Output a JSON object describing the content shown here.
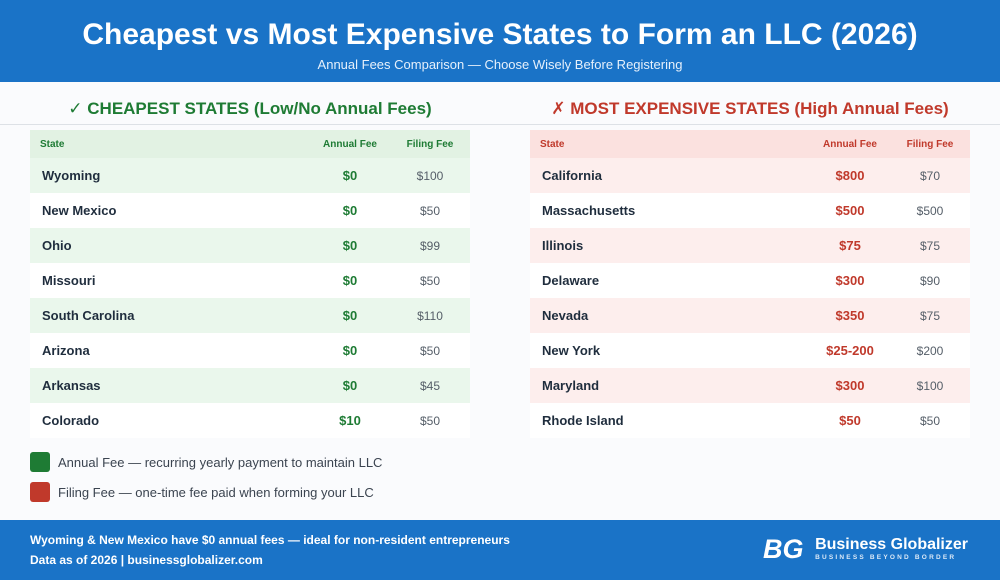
{
  "header": {
    "title": "Cheapest vs Most Expensive States to Form an LLC (2026)",
    "subtitle": "Annual Fees Comparison — Choose Wisely Before Registering"
  },
  "columns": {
    "state": "State",
    "annual": "Annual Fee",
    "filing": "Filing Fee"
  },
  "cheapest": {
    "title": "✓ CHEAPEST STATES (Low/No Annual Fees)",
    "accent": "#1e7b34",
    "rows": [
      {
        "state": "Wyoming",
        "annual": "$0",
        "filing": "$100"
      },
      {
        "state": "New Mexico",
        "annual": "$0",
        "filing": "$50"
      },
      {
        "state": "Ohio",
        "annual": "$0",
        "filing": "$99"
      },
      {
        "state": "Missouri",
        "annual": "$0",
        "filing": "$50"
      },
      {
        "state": "South Carolina",
        "annual": "$0",
        "filing": "$110"
      },
      {
        "state": "Arizona",
        "annual": "$0",
        "filing": "$50"
      },
      {
        "state": "Arkansas",
        "annual": "$0",
        "filing": "$45"
      },
      {
        "state": "Colorado",
        "annual": "$10",
        "filing": "$50"
      }
    ]
  },
  "expensive": {
    "title": "✗ MOST EXPENSIVE STATES (High Annual Fees)",
    "accent": "#c0392b",
    "rows": [
      {
        "state": "California",
        "annual": "$800",
        "filing": "$70"
      },
      {
        "state": "Massachusetts",
        "annual": "$500",
        "filing": "$500"
      },
      {
        "state": "Illinois",
        "annual": "$75",
        "filing": "$75"
      },
      {
        "state": "Delaware",
        "annual": "$300",
        "filing": "$90"
      },
      {
        "state": "Nevada",
        "annual": "$350",
        "filing": "$75"
      },
      {
        "state": "New York",
        "annual": "$25-200",
        "filing": "$200"
      },
      {
        "state": "Maryland",
        "annual": "$300",
        "filing": "$100"
      },
      {
        "state": "Rhode Island",
        "annual": "$50",
        "filing": "$50"
      }
    ]
  },
  "legend": [
    {
      "label": "Annual Fee — recurring yearly payment to maintain LLC",
      "color": "#1e7b34"
    },
    {
      "label": "Filing Fee — one-time fee paid when forming your LLC",
      "color": "#c0392b"
    }
  ],
  "footer": {
    "line1": "Wyoming & New Mexico have $0 annual fees — ideal for non-resident entrepreneurs",
    "line2": "Data as of 2026 | businessglobalizer.com",
    "brand_name": "Business Globalizer",
    "brand_tagline": "BUSINESS BEYOND BORDER",
    "logo_text": "BG"
  }
}
